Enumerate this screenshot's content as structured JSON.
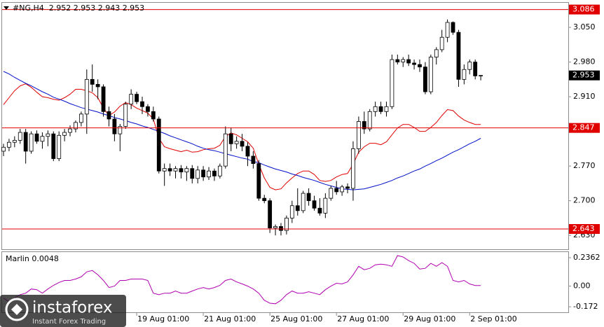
{
  "chart_data": [
    {
      "type": "candlestick",
      "title": "#NG,H4  2.952 2.953 2.943 2.953",
      "open": [
        2.8,
        2.808,
        2.818,
        2.822,
        2.838,
        2.8,
        2.835,
        2.82,
        2.83,
        2.835,
        2.785,
        2.832,
        2.838,
        2.845,
        2.858,
        2.875,
        2.945,
        2.935,
        2.93,
        2.88,
        2.865,
        2.835,
        2.85,
        2.895,
        2.915,
        2.9,
        2.89,
        2.88,
        2.865,
        2.76,
        2.765,
        2.76,
        2.765,
        2.758,
        2.765,
        2.745,
        2.762,
        2.748,
        2.76,
        2.75,
        2.77,
        2.835,
        2.815,
        2.82,
        2.81,
        2.79,
        2.775,
        2.705,
        2.7,
        2.645,
        2.648,
        2.64,
        2.665,
        2.69,
        2.68,
        2.715,
        2.7,
        2.685,
        2.675,
        2.705,
        2.725,
        2.718,
        2.728,
        2.725,
        2.805,
        2.86,
        2.845,
        2.88,
        2.89,
        2.88,
        2.89,
        2.985,
        2.98,
        2.985,
        2.978,
        2.975,
        2.97,
        2.92,
        2.99,
        3.005,
        3.03,
        3.06,
        3.04,
        2.945,
        2.965,
        2.98,
        2.952
      ],
      "high": [
        2.815,
        2.825,
        2.83,
        2.845,
        2.845,
        2.84,
        2.842,
        2.838,
        2.842,
        2.84,
        2.84,
        2.845,
        2.852,
        2.862,
        2.88,
        2.965,
        2.975,
        2.945,
        2.935,
        2.89,
        2.875,
        2.855,
        2.9,
        2.925,
        2.92,
        2.91,
        2.895,
        2.89,
        2.87,
        2.775,
        2.775,
        2.77,
        2.772,
        2.77,
        2.772,
        2.77,
        2.77,
        2.768,
        2.765,
        2.775,
        2.85,
        2.848,
        2.83,
        2.835,
        2.818,
        2.8,
        2.782,
        2.712,
        2.705,
        2.652,
        2.655,
        2.67,
        2.7,
        2.725,
        2.72,
        2.725,
        2.71,
        2.705,
        2.715,
        2.73,
        2.74,
        2.732,
        2.735,
        2.82,
        2.87,
        2.88,
        2.885,
        2.9,
        2.9,
        2.9,
        2.995,
        2.995,
        2.99,
        2.995,
        2.985,
        2.985,
        2.98,
        2.995,
        3.01,
        3.045,
        3.066,
        3.062,
        3.045,
        2.975,
        2.985,
        2.985,
        2.953
      ],
      "low": [
        2.79,
        2.8,
        2.808,
        2.815,
        2.775,
        2.795,
        2.815,
        2.805,
        2.81,
        2.78,
        2.78,
        2.82,
        2.83,
        2.838,
        2.85,
        2.835,
        2.92,
        2.905,
        2.87,
        2.85,
        2.82,
        2.8,
        2.845,
        2.885,
        2.895,
        2.875,
        2.87,
        2.86,
        2.755,
        2.73,
        2.75,
        2.745,
        2.745,
        2.74,
        2.735,
        2.735,
        2.74,
        2.742,
        2.74,
        2.745,
        2.765,
        2.8,
        2.805,
        2.8,
        2.77,
        2.765,
        2.7,
        2.695,
        2.635,
        2.63,
        2.63,
        2.632,
        2.655,
        2.67,
        2.675,
        2.69,
        2.68,
        2.67,
        2.665,
        2.7,
        2.712,
        2.71,
        2.715,
        2.7,
        2.795,
        2.835,
        2.84,
        2.87,
        2.875,
        2.87,
        2.885,
        2.975,
        2.97,
        2.972,
        2.965,
        2.96,
        2.915,
        2.915,
        2.975,
        3.0,
        3.02,
        3.035,
        2.93,
        2.935,
        2.955,
        2.945,
        2.943
      ],
      "close": [
        2.808,
        2.818,
        2.822,
        2.838,
        2.8,
        2.835,
        2.82,
        2.83,
        2.835,
        2.785,
        2.832,
        2.838,
        2.845,
        2.858,
        2.875,
        2.945,
        2.935,
        2.93,
        2.88,
        2.865,
        2.835,
        2.85,
        2.895,
        2.915,
        2.9,
        2.89,
        2.88,
        2.865,
        2.76,
        2.765,
        2.76,
        2.765,
        2.758,
        2.765,
        2.745,
        2.762,
        2.748,
        2.76,
        2.75,
        2.77,
        2.835,
        2.815,
        2.82,
        2.81,
        2.79,
        2.775,
        2.705,
        2.7,
        2.645,
        2.648,
        2.64,
        2.665,
        2.69,
        2.68,
        2.715,
        2.7,
        2.685,
        2.675,
        2.705,
        2.725,
        2.718,
        2.728,
        2.725,
        2.805,
        2.86,
        2.845,
        2.88,
        2.89,
        2.88,
        2.89,
        2.985,
        2.98,
        2.985,
        2.978,
        2.975,
        2.97,
        2.92,
        2.99,
        3.005,
        3.03,
        3.06,
        3.04,
        2.945,
        2.965,
        2.98,
        2.952,
        2.953
      ],
      "up_color": "#ffffff",
      "down_color": "#000000",
      "wick_color": "#000000",
      "overlays": [
        {
          "color": "#e00000",
          "values": [
            2.894,
            2.908,
            2.922,
            2.932,
            2.936,
            2.929,
            2.919,
            2.91,
            2.908,
            2.905,
            2.903,
            2.908,
            2.915,
            2.925,
            2.925,
            2.922,
            2.918,
            2.908,
            2.887,
            2.872,
            2.879,
            2.891,
            2.898,
            2.894,
            2.887,
            2.882,
            2.877,
            2.865,
            2.826,
            2.809,
            2.805,
            2.802,
            2.799,
            2.802,
            2.798,
            2.799,
            2.803,
            2.805,
            2.806,
            2.812,
            2.83,
            2.837,
            2.833,
            2.826,
            2.819,
            2.806,
            2.774,
            2.746,
            2.727,
            2.722,
            2.724,
            2.736,
            2.746,
            2.755,
            2.76,
            2.76,
            2.753,
            2.741,
            2.739,
            2.741,
            2.748,
            2.753,
            2.755,
            2.774,
            2.798,
            2.809,
            2.816,
            2.816,
            2.813,
            2.819,
            2.833,
            2.847,
            2.854,
            2.854,
            2.848,
            2.84,
            2.84,
            2.848,
            2.858,
            2.872,
            2.884,
            2.882,
            2.871,
            2.863,
            2.858,
            2.854,
            2.854
          ]
        },
        {
          "color": "#0010c8",
          "values": [
            2.961,
            2.956,
            2.949,
            2.943,
            2.937,
            2.932,
            2.926,
            2.92,
            2.915,
            2.909,
            2.905,
            2.901,
            2.896,
            2.892,
            2.888,
            2.885,
            2.882,
            2.879,
            2.875,
            2.872,
            2.868,
            2.865,
            2.862,
            2.858,
            2.855,
            2.851,
            2.848,
            2.844,
            2.84,
            2.836,
            2.831,
            2.827,
            2.823,
            2.819,
            2.815,
            2.81,
            2.806,
            2.803,
            2.801,
            2.798,
            2.795,
            2.792,
            2.789,
            2.786,
            2.784,
            2.779,
            2.777,
            2.772,
            2.768,
            2.764,
            2.761,
            2.758,
            2.754,
            2.751,
            2.747,
            2.744,
            2.741,
            2.737,
            2.733,
            2.73,
            2.727,
            2.724,
            2.723,
            2.722,
            2.723,
            2.724,
            2.727,
            2.73,
            2.733,
            2.737,
            2.741,
            2.746,
            2.75,
            2.755,
            2.76,
            2.764,
            2.77,
            2.775,
            2.781,
            2.786,
            2.792,
            2.798,
            2.803,
            2.809,
            2.815,
            2.82,
            2.826
          ]
        }
      ],
      "levels": [
        {
          "value": 3.086,
          "label": "3.086",
          "color": "#e00000"
        },
        {
          "value": 2.847,
          "label": "2.847",
          "color": "#e00000"
        },
        {
          "value": 2.643,
          "label": "2.643",
          "color": "#e00000"
        }
      ],
      "last_price": {
        "value": 2.953,
        "label": "2.953",
        "color": "#000000"
      },
      "ylim": [
        2.602,
        3.101
      ],
      "yticks": [
        {
          "value": 2.63,
          "label": "2.630"
        },
        {
          "value": 2.7,
          "label": "2.700"
        },
        {
          "value": 2.77,
          "label": "2.770"
        },
        {
          "value": 2.91,
          "label": "2.910"
        },
        {
          "value": 2.98,
          "label": "2.980"
        },
        {
          "value": 3.05,
          "label": "3.050"
        }
      ],
      "xticks": [
        {
          "value": 24,
          "label": "19 Aug 01:00"
        },
        {
          "value": 36,
          "label": "21 Aug 01:00"
        },
        {
          "value": 48,
          "label": "25 Aug 01:00"
        },
        {
          "value": 60,
          "label": "27 Aug 01:00"
        },
        {
          "value": 72,
          "label": "29 Aug 01:00"
        },
        {
          "value": 84,
          "label": "2 Sep 01:00"
        }
      ]
    },
    {
      "type": "line",
      "title": "Marlin 0.0048",
      "color": "#b000b0",
      "values": [
        -0.1,
        -0.13,
        -0.1,
        -0.071,
        -0.059,
        -0.024,
        -0.03,
        -0.059,
        -0.024,
        0.006,
        0.03,
        0.047,
        0.047,
        0.059,
        0.077,
        0.118,
        0.13,
        0.094,
        0.047,
        -0.012,
        0.0,
        0.047,
        0.047,
        0.059,
        0.059,
        0.059,
        0.047,
        -0.059,
        -0.071,
        -0.059,
        -0.059,
        -0.041,
        -0.059,
        -0.059,
        -0.041,
        -0.024,
        -0.012,
        -0.024,
        -0.012,
        0.006,
        0.047,
        0.059,
        0.035,
        0.018,
        0.0,
        -0.024,
        -0.059,
        -0.118,
        -0.142,
        -0.147,
        -0.118,
        -0.071,
        -0.041,
        -0.059,
        -0.059,
        -0.047,
        -0.059,
        -0.071,
        -0.03,
        0.0,
        0.024,
        0.018,
        0.035,
        0.094,
        0.165,
        0.136,
        0.148,
        0.177,
        0.183,
        0.177,
        0.165,
        0.254,
        0.242,
        0.212,
        0.189,
        0.142,
        0.148,
        0.189,
        0.165,
        0.195,
        0.165,
        0.047,
        0.035,
        0.047,
        0.018,
        0.005,
        0.0048
      ],
      "ylim": [
        -0.218,
        0.283
      ],
      "yticks": [
        -0.172,
        {
          "value": 0,
          "label": "0.00"
        },
        0.2362
      ]
    }
  ],
  "watermark": {
    "brand": "instaforex",
    "tagline": "Instant Forex Trading"
  }
}
